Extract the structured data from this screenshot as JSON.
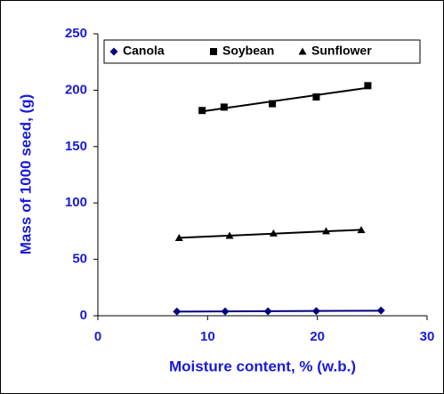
{
  "chart_data": {
    "type": "scatter",
    "xlabel": "Moisture content, % (w.b.)",
    "ylabel": "Mass of 1000 seed, (g)",
    "xlim": [
      0,
      30
    ],
    "xticks": [
      0,
      10,
      20,
      30
    ],
    "ylim": [
      0,
      250
    ],
    "yticks": [
      0,
      50,
      100,
      150,
      200,
      250
    ],
    "trendline": true,
    "legend": "top",
    "series": [
      {
        "name": "Canola",
        "color": "#000080",
        "marker": "diamond",
        "x": [
          7.2,
          11.6,
          15.5,
          19.9,
          25.8
        ],
        "values": [
          3.7,
          3.8,
          3.9,
          4.1,
          4.6
        ]
      },
      {
        "name": "Soybean",
        "color": "#000000",
        "marker": "square",
        "x": [
          9.5,
          11.5,
          15.9,
          19.9,
          24.6
        ],
        "values": [
          182,
          185,
          188,
          194,
          204
        ]
      },
      {
        "name": "Sunflower",
        "color": "#000000",
        "marker": "triangle",
        "x": [
          7.4,
          12,
          16,
          20.8,
          24
        ],
        "values": [
          69,
          71,
          73,
          75,
          76
        ]
      }
    ]
  }
}
